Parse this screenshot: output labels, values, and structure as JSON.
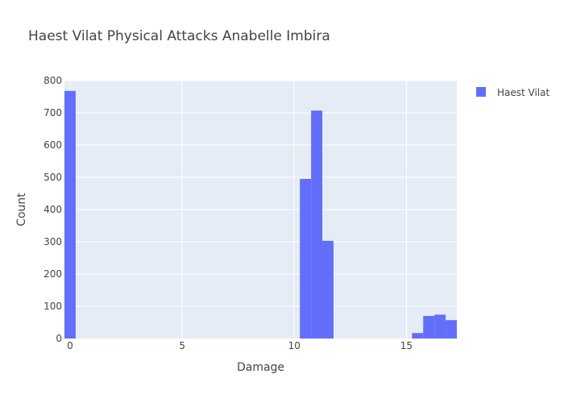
{
  "chart_data": {
    "type": "bar",
    "title": "Haest Vilat Physical Attacks Anabelle Imbira",
    "xlabel": "Damage",
    "ylabel": "Count",
    "xlim": [
      -0.25,
      17.25
    ],
    "ylim": [
      0,
      800
    ],
    "x_ticks": [
      0,
      5,
      10,
      15
    ],
    "y_ticks": [
      0,
      100,
      200,
      300,
      400,
      500,
      600,
      700,
      800
    ],
    "grid": true,
    "legend_position": "top-right",
    "bin_width": 0.5,
    "series": [
      {
        "name": "Haest Vilat",
        "color": "#636efa",
        "bins": [
          {
            "x0": -0.25,
            "count": 768
          },
          {
            "x0": 10.25,
            "count": 495
          },
          {
            "x0": 10.75,
            "count": 707
          },
          {
            "x0": 11.25,
            "count": 303
          },
          {
            "x0": 15.25,
            "count": 17
          },
          {
            "x0": 15.75,
            "count": 70
          },
          {
            "x0": 16.25,
            "count": 74
          },
          {
            "x0": 16.75,
            "count": 57
          }
        ]
      }
    ]
  }
}
